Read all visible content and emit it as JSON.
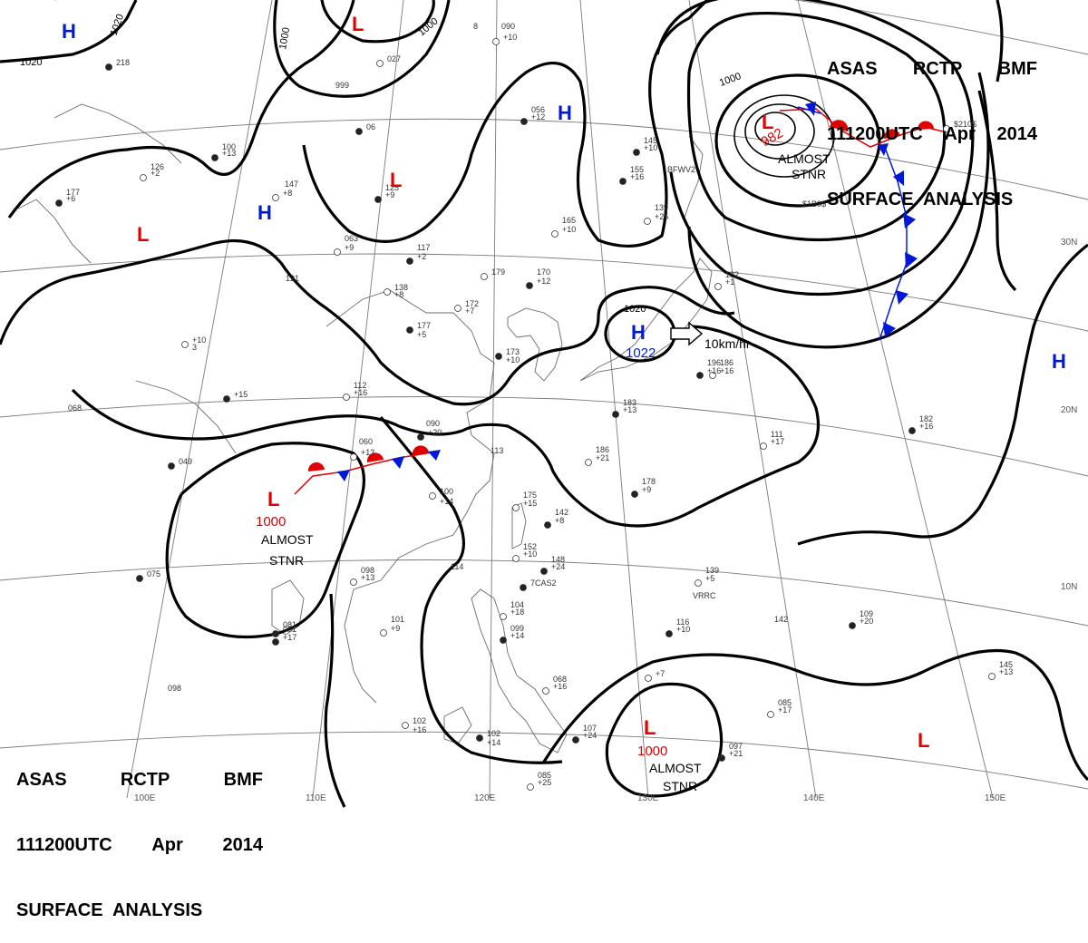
{
  "header": {
    "line1": [
      "ASAS",
      "RCTP",
      "BMF"
    ],
    "line2": [
      "111200UTC",
      "Apr",
      "2014"
    ],
    "line3": "SURFACE  ANALYSIS"
  },
  "longitude_labels": [
    "100E",
    "110E",
    "120E",
    "130E",
    "140E",
    "150E"
  ],
  "latitude_labels": [
    "30N",
    "20N",
    "10N"
  ],
  "isobar_labels": [
    "1020",
    "1020",
    "1000",
    "1000",
    "1000",
    "1020"
  ],
  "pressure_systems": [
    {
      "type": "H",
      "label": "H"
    },
    {
      "type": "H",
      "label": "H"
    },
    {
      "type": "H",
      "label": "H",
      "value": "1022",
      "motion": "10km/hr"
    },
    {
      "type": "H",
      "label": "H"
    },
    {
      "type": "L",
      "label": "L"
    },
    {
      "type": "L",
      "label": "L"
    },
    {
      "type": "L",
      "label": "L"
    },
    {
      "type": "L",
      "label": "L",
      "value": "982",
      "note": [
        "ALMOST",
        "STNR"
      ]
    },
    {
      "type": "L",
      "label": "L",
      "value": "1000",
      "note": [
        "ALMOST",
        "STNR"
      ]
    },
    {
      "type": "L",
      "label": "L",
      "value": "1000",
      "note": [
        "ALMOST",
        "STNR"
      ]
    },
    {
      "type": "L",
      "label": "L"
    }
  ],
  "colors": {
    "low": "#e00000",
    "high": "#0019d8",
    "cold_front": "#0019d8",
    "warm_front": "#e00000",
    "isobar": "#000000",
    "grid": "#7a7a7a"
  },
  "station_labels": [
    "218",
    "8",
    "027",
    "999",
    "06",
    "147",
    "+8",
    "125",
    "+9",
    "063",
    "+9",
    "117",
    "+2",
    "121",
    "138",
    "+8",
    "177",
    "+5",
    "+10",
    "3",
    "+15",
    "112",
    "+16",
    "068",
    "049",
    "060",
    "+13",
    "090",
    "+20",
    "113",
    "100",
    "+14",
    "081",
    "098",
    "+13",
    "114",
    "075",
    "101",
    "+9",
    "081",
    "+17",
    "098",
    "102",
    "+16",
    "102",
    "+14",
    "172",
    "+7",
    "173",
    "+10",
    "179",
    "170",
    "+12",
    "165",
    "+10",
    "155",
    "+16",
    "139",
    "+25",
    "145",
    "+10",
    "182",
    "+1",
    "196",
    "+16",
    "186",
    "+16",
    "183",
    "+13",
    "186",
    "+21",
    "178",
    "+9",
    "175",
    "+15",
    "142",
    "+8",
    "152",
    "+10",
    "148",
    "+24",
    "139",
    "+5",
    "116",
    "+10",
    "104",
    "+18",
    "099",
    "+14",
    "068",
    "+16",
    "107",
    "+24",
    "085",
    "+25",
    "097",
    "+21",
    "085",
    "+17",
    "109",
    "+20",
    "111",
    "+17",
    "182",
    "+16",
    "145",
    "+13",
    "100",
    "+13",
    "126",
    "+2",
    "177",
    "+6",
    "090",
    "+10",
    "056",
    "+12",
    "142",
    "+7",
    "VRRC",
    "7CAS2",
    "$1B9$",
    "$210$",
    "BFWV2",
    "3FZM",
    "+20"
  ]
}
